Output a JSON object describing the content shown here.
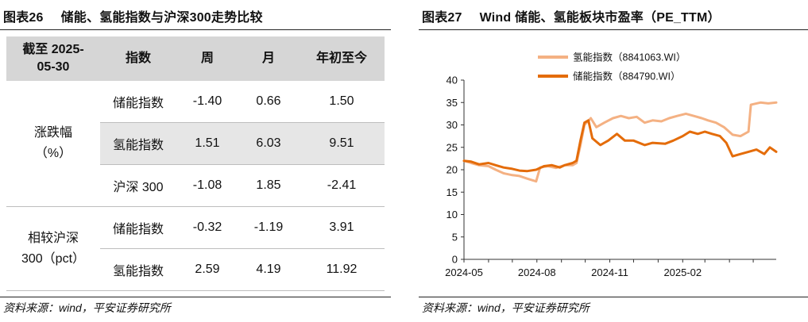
{
  "left": {
    "figure_number": "图表26",
    "title": "储能、氢能指数与沪深300走势比较",
    "source": "资料来源：wind，平安证券研究所",
    "table": {
      "headers": [
        "截至 2025-\n05-30",
        "指数",
        "周",
        "月",
        "年初至今"
      ],
      "groups": [
        {
          "label": "涨跌幅\n（%）",
          "rows": [
            {
              "index": "储能指数",
              "week": "-1.40",
              "month": "0.66",
              "ytd": "1.50"
            },
            {
              "index": "氢能指数",
              "week": "1.51",
              "month": "6.03",
              "ytd": "9.51"
            },
            {
              "index": "沪深 300",
              "week": "-1.08",
              "month": "1.85",
              "ytd": "-2.41"
            }
          ]
        },
        {
          "label": "相较沪深\n300（pct）",
          "rows": [
            {
              "index": "储能指数",
              "week": "-0.32",
              "month": "-1.19",
              "ytd": "3.91"
            },
            {
              "index": "氢能指数",
              "week": "2.59",
              "month": "4.19",
              "ytd": "11.92"
            }
          ]
        }
      ]
    }
  },
  "right": {
    "figure_number": "图表27",
    "title": "Wind 储能、氢能板块市盈率（PE_TTM）",
    "source": "资料来源：wind，平安证券研究所"
  },
  "chart_data": {
    "type": "line",
    "title": "Wind 储能、氢能板块市盈率（PE_TTM）",
    "xlabel": "",
    "ylabel": "",
    "ylim": [
      0,
      40
    ],
    "yticks": [
      0,
      5,
      10,
      15,
      20,
      25,
      30,
      35,
      40
    ],
    "xticks": [
      "2024-05",
      "2024-08",
      "2024-11",
      "2025-02"
    ],
    "xlim": [
      "2024-05-01",
      "2025-05-30"
    ],
    "grid": false,
    "legend_position": "top",
    "series": [
      {
        "name": "氢能指数（8841063.WI）",
        "color": "#f4b183",
        "points": [
          [
            "2024-05-01",
            22.0
          ],
          [
            "2024-05-10",
            21.5
          ],
          [
            "2024-05-20",
            21.0
          ],
          [
            "2024-06-01",
            20.8
          ],
          [
            "2024-06-10",
            20.0
          ],
          [
            "2024-06-20",
            19.2
          ],
          [
            "2024-07-01",
            18.8
          ],
          [
            "2024-07-10",
            18.6
          ],
          [
            "2024-07-20",
            18.0
          ],
          [
            "2024-07-31",
            17.4
          ],
          [
            "2024-08-05",
            20.5
          ],
          [
            "2024-08-15",
            20.8
          ],
          [
            "2024-08-25",
            20.4
          ],
          [
            "2024-09-05",
            21.0
          ],
          [
            "2024-09-15",
            21.0
          ],
          [
            "2024-09-20",
            21.5
          ],
          [
            "2024-09-25",
            25.5
          ],
          [
            "2024-09-30",
            30.0
          ],
          [
            "2024-10-08",
            31.5
          ],
          [
            "2024-10-15",
            29.5
          ],
          [
            "2024-10-25",
            30.5
          ],
          [
            "2024-11-05",
            31.5
          ],
          [
            "2024-11-15",
            32.0
          ],
          [
            "2024-11-25",
            31.5
          ],
          [
            "2024-12-05",
            31.8
          ],
          [
            "2024-12-15",
            30.5
          ],
          [
            "2024-12-25",
            31.0
          ],
          [
            "2025-01-05",
            30.8
          ],
          [
            "2025-01-15",
            31.5
          ],
          [
            "2025-01-25",
            32.0
          ],
          [
            "2025-02-05",
            32.5
          ],
          [
            "2025-02-15",
            32.0
          ],
          [
            "2025-02-25",
            31.5
          ],
          [
            "2025-03-05",
            31.0
          ],
          [
            "2025-03-15",
            30.5
          ],
          [
            "2025-03-25",
            29.5
          ],
          [
            "2025-04-05",
            27.8
          ],
          [
            "2025-04-15",
            27.5
          ],
          [
            "2025-04-25",
            28.5
          ],
          [
            "2025-04-28",
            34.5
          ],
          [
            "2025-05-10",
            35.0
          ],
          [
            "2025-05-20",
            34.8
          ],
          [
            "2025-05-30",
            35.0
          ]
        ]
      },
      {
        "name": "储能指数（884790.WI）",
        "color": "#e46c0a",
        "points": [
          [
            "2024-05-01",
            22.0
          ],
          [
            "2024-05-10",
            21.8
          ],
          [
            "2024-05-20",
            21.2
          ],
          [
            "2024-06-01",
            21.5
          ],
          [
            "2024-06-10",
            21.0
          ],
          [
            "2024-06-20",
            20.5
          ],
          [
            "2024-07-01",
            20.2
          ],
          [
            "2024-07-10",
            19.8
          ],
          [
            "2024-07-20",
            19.7
          ],
          [
            "2024-07-31",
            20.0
          ],
          [
            "2024-08-10",
            20.8
          ],
          [
            "2024-08-20",
            21.0
          ],
          [
            "2024-08-30",
            20.5
          ],
          [
            "2024-09-05",
            21.0
          ],
          [
            "2024-09-15",
            21.5
          ],
          [
            "2024-09-20",
            22.0
          ],
          [
            "2024-09-25",
            26.5
          ],
          [
            "2024-09-30",
            30.5
          ],
          [
            "2024-10-05",
            31.0
          ],
          [
            "2024-10-10",
            27.0
          ],
          [
            "2024-10-20",
            25.5
          ],
          [
            "2024-10-30",
            26.5
          ],
          [
            "2024-11-10",
            28.0
          ],
          [
            "2024-11-20",
            26.5
          ],
          [
            "2024-12-01",
            26.5
          ],
          [
            "2024-12-15",
            25.5
          ],
          [
            "2024-12-25",
            26.0
          ],
          [
            "2025-01-10",
            25.8
          ],
          [
            "2025-01-20",
            26.5
          ],
          [
            "2025-02-01",
            27.5
          ],
          [
            "2025-02-10",
            28.5
          ],
          [
            "2025-02-20",
            28.0
          ],
          [
            "2025-03-01",
            28.5
          ],
          [
            "2025-03-10",
            28.0
          ],
          [
            "2025-03-20",
            27.5
          ],
          [
            "2025-03-28",
            26.0
          ],
          [
            "2025-04-05",
            23.0
          ],
          [
            "2025-04-15",
            23.5
          ],
          [
            "2025-04-25",
            24.0
          ],
          [
            "2025-05-05",
            24.5
          ],
          [
            "2025-05-15",
            23.5
          ],
          [
            "2025-05-22",
            25.0
          ],
          [
            "2025-05-30",
            24.0
          ]
        ]
      }
    ]
  }
}
